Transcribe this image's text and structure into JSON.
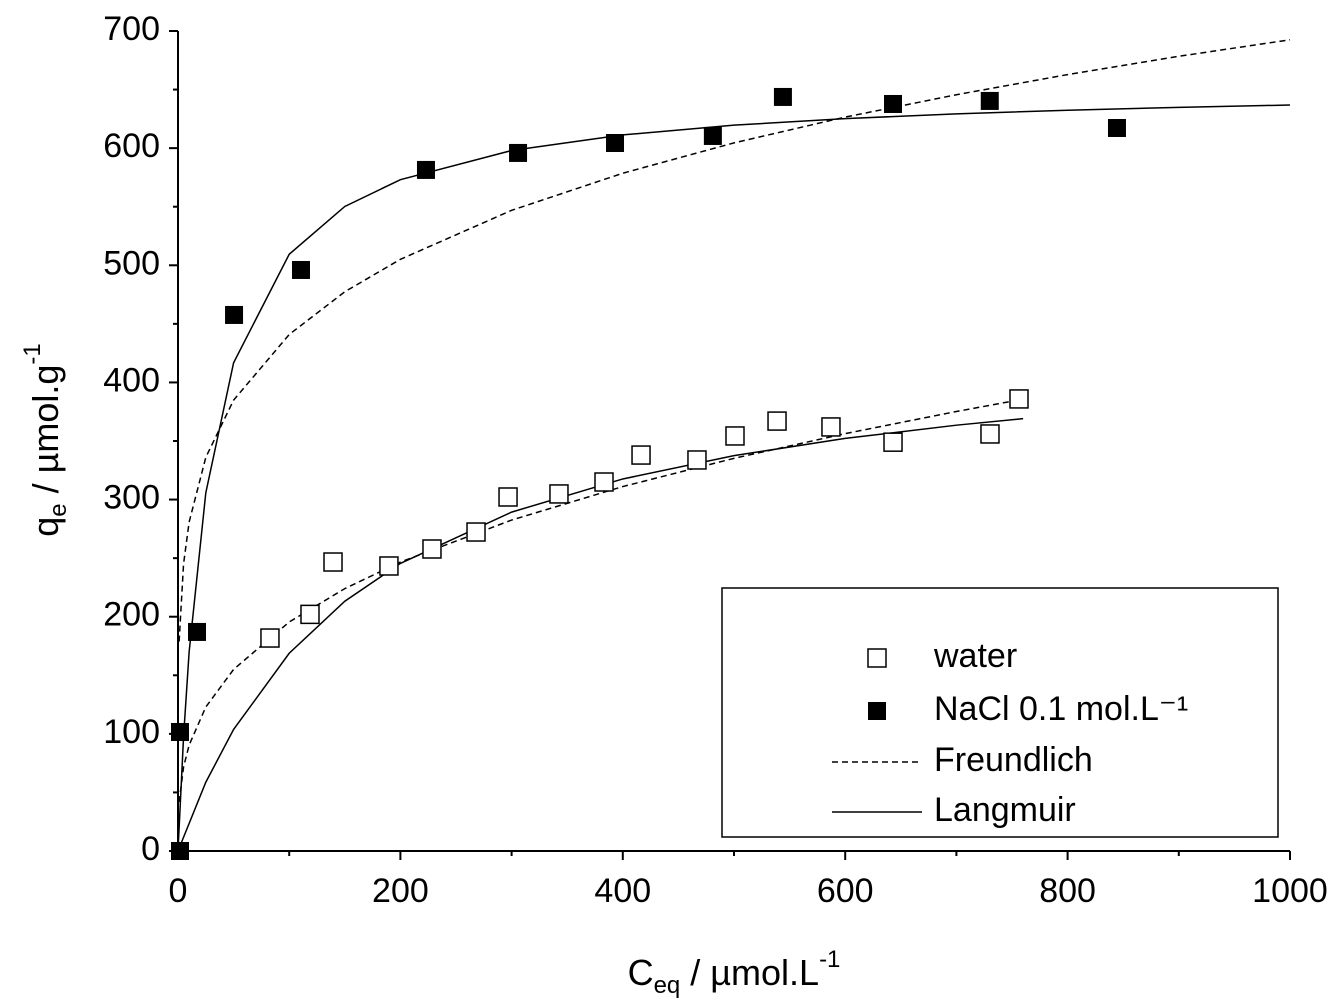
{
  "chart_data": {
    "type": "scatter",
    "x_label": [
      "C",
      "eq",
      " / µmol.L",
      "-1"
    ],
    "y_label": [
      "q",
      "e",
      " / µmol.g",
      "-1"
    ],
    "xlim": [
      0,
      1000
    ],
    "xticks": [
      0,
      200,
      400,
      600,
      800,
      1000
    ],
    "x_minor_ticks": [
      100,
      300,
      500,
      700,
      900
    ],
    "ylim": [
      0,
      700
    ],
    "yticks": [
      0,
      100,
      200,
      300,
      400,
      500,
      600,
      700
    ],
    "y_minor_ticks": [
      50,
      150,
      250,
      350,
      450,
      550,
      650
    ],
    "series": [
      {
        "name": "water",
        "marker": "open-square",
        "color": "#000000",
        "x": [
          82.7,
          118.7,
          139.4,
          189.7,
          228.4,
          268,
          296.8,
          342.6,
          383.1,
          416.4,
          466.7,
          500.9,
          538.7,
          587.2,
          643,
          730.2,
          756.3
        ],
        "values": [
          181.8,
          202,
          246.7,
          243.3,
          257.8,
          272.3,
          302.2,
          304.8,
          315,
          338,
          333.8,
          354.3,
          367,
          362,
          349,
          356,
          385.9
        ]
      },
      {
        "name": "NaCl 0.1 mol.L⁻¹",
        "marker": "filled-square",
        "color": "#000000",
        "x": [
          1.8,
          1.8,
          17.1,
          50.4,
          110.6,
          223,
          305.8,
          393,
          481,
          544,
          643,
          730,
          844.4
        ],
        "values": [
          0,
          101.6,
          187,
          457.6,
          496,
          581.4,
          595.9,
          604.4,
          610.4,
          643.7,
          637.7,
          640.3,
          617.2
        ]
      }
    ],
    "fits": [
      {
        "name": "Freundlich",
        "dash": "dashed",
        "color": "#000000",
        "curves": [
          {
            "x": [
              1,
              5,
              10,
              25,
              50,
              100,
              150,
              200,
              300,
              400,
              500,
              600,
              700,
              760
            ],
            "y": [
              41.8,
              71.7,
              90.4,
              122.9,
              155,
              195.5,
              224,
              246.6,
              282.5,
              311.1,
              335.2,
              356.3,
              375.2,
              385.7
            ]
          },
          {
            "x": [
              1,
              5,
              10,
              25,
              50,
              100,
              150,
              200,
              300,
              400,
              500,
              600,
              700,
              800,
              900,
              1000
            ],
            "y": [
              178.8,
              245.1,
              280.7,
              336,
              384.9,
              440.9,
              477.4,
              505.1,
              546.9,
              578.6,
              604.5,
              626.5,
              645.6,
              662.8,
              678.4,
              692.5
            ]
          }
        ]
      },
      {
        "name": "Langmuir",
        "dash": "solid",
        "color": "#000000",
        "curves": [
          {
            "x": [
              0,
              25,
              50,
              100,
              150,
              200,
              300,
              400,
              500,
              600,
              700,
              760
            ],
            "y": [
              0,
              58.7,
              103.8,
              168.8,
              213.2,
              245.5,
              289.3,
              317.6,
              337.5,
              352.2,
              363.5,
              369.1
            ]
          },
          {
            "x": [
              0,
              5,
              10,
              25,
              50,
              100,
              150,
              200,
              300,
              400,
              500,
              600,
              700,
              800,
              900,
              1000
            ],
            "y": [
              0,
              97.6,
              169.8,
              305.7,
              416.8,
              509.4,
              550.2,
              573.1,
              598,
              611.3,
              619.6,
              625.2,
              629.3,
              632.4,
              634.8,
              636.8
            ]
          }
        ]
      }
    ]
  }
}
